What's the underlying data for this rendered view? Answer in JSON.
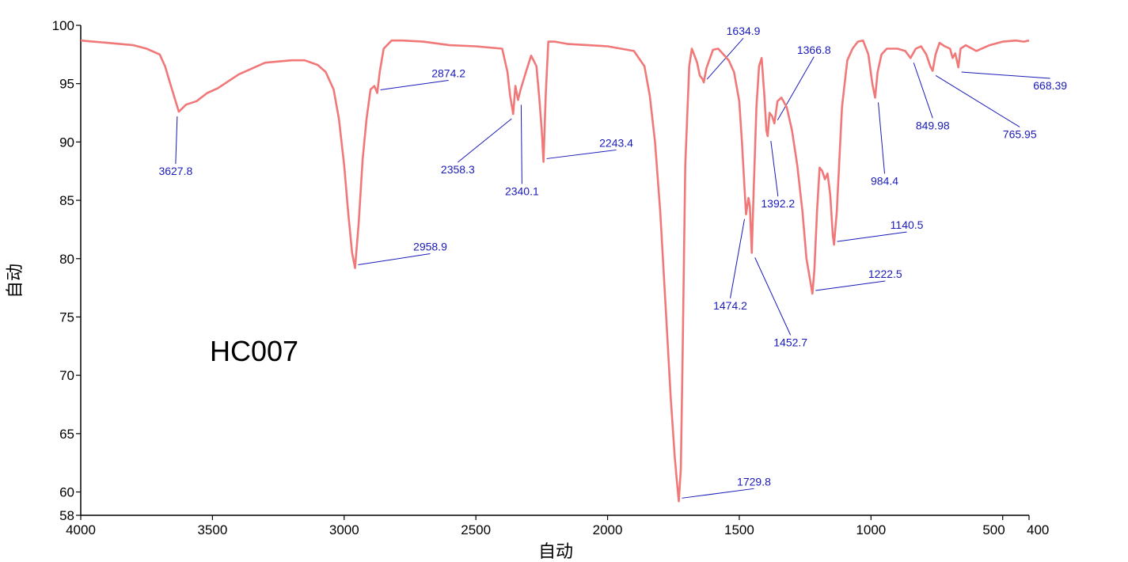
{
  "chart_data": {
    "type": "line",
    "title": "",
    "xlabel": "自动",
    "ylabel": "自动",
    "annotation": "HC007",
    "xlim": [
      4000,
      400
    ],
    "ylim": [
      58,
      100
    ],
    "x_ticks": [
      "4000",
      "3500",
      "3000",
      "2500",
      "2000",
      "1500",
      "1000",
      "500",
      "400"
    ],
    "y_ticks": [
      "100",
      "95",
      "90",
      "85",
      "80",
      "75",
      "70",
      "65",
      "60",
      "58"
    ],
    "grid": false,
    "line_color": "#f07878",
    "label_color": "#1a1ab8",
    "series": [
      {
        "x": [
          4000,
          3900,
          3800,
          3750,
          3700,
          3680,
          3660,
          3640,
          3627.8,
          3600,
          3560,
          3520,
          3480,
          3440,
          3400,
          3300,
          3200,
          3150,
          3100,
          3070,
          3040,
          3020,
          3000,
          2985,
          2970,
          2958.9,
          2945,
          2930,
          2915,
          2900,
          2885,
          2874.2,
          2865,
          2850,
          2820,
          2780,
          2700,
          2600,
          2500,
          2400,
          2380,
          2370,
          2358.3,
          2350,
          2340.1,
          2330,
          2310,
          2290,
          2270,
          2260,
          2250,
          2243.4,
          2235,
          2225,
          2200,
          2150,
          2000,
          1900,
          1860,
          1840,
          1820,
          1800,
          1780,
          1760,
          1745,
          1735,
          1729.8,
          1722,
          1715,
          1705,
          1690,
          1680,
          1670,
          1660,
          1650,
          1640,
          1634.9,
          1625,
          1600,
          1580,
          1560,
          1540,
          1520,
          1500,
          1490,
          1480,
          1474.2,
          1465,
          1460,
          1452.7,
          1445,
          1435,
          1425,
          1415,
          1405,
          1397,
          1392.2,
          1385,
          1375,
          1366.8,
          1355,
          1340,
          1320,
          1300,
          1280,
          1260,
          1245,
          1230,
          1222.5,
          1215,
          1205,
          1195,
          1185,
          1175,
          1165,
          1155,
          1145,
          1140.5,
          1130,
          1110,
          1090,
          1070,
          1050,
          1030,
          1010,
          995,
          984.4,
          975,
          960,
          940,
          900,
          870,
          849.98,
          830,
          810,
          790,
          775,
          765.95,
          755,
          740,
          720,
          700,
          690,
          680,
          668.39,
          660,
          640,
          600,
          550,
          500,
          450,
          420,
          400
        ],
        "y": [
          98.7,
          98.5,
          98.3,
          98.0,
          97.5,
          96.5,
          95.0,
          93.5,
          92.6,
          93.2,
          93.5,
          94.2,
          94.6,
          95.2,
          95.8,
          96.8,
          97.0,
          97.0,
          96.6,
          96.0,
          94.5,
          92.0,
          88.0,
          84.0,
          80.5,
          79.2,
          83.0,
          88.5,
          92.0,
          94.5,
          94.8,
          94.2,
          96.0,
          98.0,
          98.7,
          98.7,
          98.6,
          98.3,
          98.2,
          98.0,
          96.0,
          94.0,
          92.4,
          94.8,
          93.6,
          94.5,
          96.0,
          97.4,
          96.5,
          94.0,
          91.0,
          88.3,
          94.0,
          98.6,
          98.6,
          98.4,
          98.2,
          97.8,
          96.5,
          94.0,
          90.0,
          84.0,
          76.0,
          68.0,
          63.0,
          60.5,
          59.2,
          62.0,
          72.0,
          88.0,
          96.5,
          98.0,
          97.4,
          96.8,
          95.7,
          95.4,
          95.1,
          96.3,
          97.9,
          98.0,
          97.5,
          97.0,
          96.0,
          93.5,
          90.0,
          86.0,
          83.8,
          85.2,
          84.5,
          80.5,
          86.0,
          93.0,
          96.5,
          97.2,
          94.0,
          91.0,
          90.5,
          92.5,
          92.2,
          91.6,
          93.5,
          93.8,
          93.0,
          91.0,
          88.0,
          84.0,
          80.0,
          78.0,
          77.0,
          79.0,
          84.0,
          87.8,
          87.5,
          86.8,
          87.3,
          85.5,
          82.0,
          81.2,
          84.0,
          93.0,
          97.0,
          98.0,
          98.6,
          98.7,
          97.5,
          95.0,
          93.8,
          96.0,
          97.5,
          98.0,
          98.0,
          97.8,
          97.2,
          98.0,
          98.2,
          97.5,
          96.5,
          96.1,
          97.5,
          98.5,
          98.2,
          98.0,
          97.2,
          97.6,
          96.4,
          98.0,
          98.3,
          97.8,
          98.3,
          98.6,
          98.7,
          98.6,
          98.7
        ]
      }
    ],
    "peaks": [
      {
        "x": 3627.8,
        "y": 92.6,
        "label": "3627.8"
      },
      {
        "x": 2958.9,
        "y": 79.2,
        "label": "2958.9"
      },
      {
        "x": 2874.2,
        "y": 94.2,
        "label": "2874.2"
      },
      {
        "x": 2358.3,
        "y": 92.4,
        "label": "2358.3"
      },
      {
        "x": 2340.1,
        "y": 93.6,
        "label": "2340.1"
      },
      {
        "x": 2243.4,
        "y": 88.3,
        "label": "2243.4"
      },
      {
        "x": 1729.8,
        "y": 59.2,
        "label": "1729.8"
      },
      {
        "x": 1634.9,
        "y": 95.1,
        "label": "1634.9"
      },
      {
        "x": 1474.2,
        "y": 83.8,
        "label": "1474.2"
      },
      {
        "x": 1452.7,
        "y": 80.5,
        "label": "1452.7"
      },
      {
        "x": 1392.2,
        "y": 90.5,
        "label": "1392.2"
      },
      {
        "x": 1366.8,
        "y": 91.6,
        "label": "1366.8"
      },
      {
        "x": 1222.5,
        "y": 77.0,
        "label": "1222.5"
      },
      {
        "x": 1140.5,
        "y": 81.2,
        "label": "1140.5"
      },
      {
        "x": 984.4,
        "y": 93.8,
        "label": "984.4"
      },
      {
        "x": 849.98,
        "y": 97.2,
        "label": "849.98"
      },
      {
        "x": 765.95,
        "y": 96.1,
        "label": "765.95"
      },
      {
        "x": 668.39,
        "y": 96.4,
        "label": "668.39"
      }
    ]
  }
}
